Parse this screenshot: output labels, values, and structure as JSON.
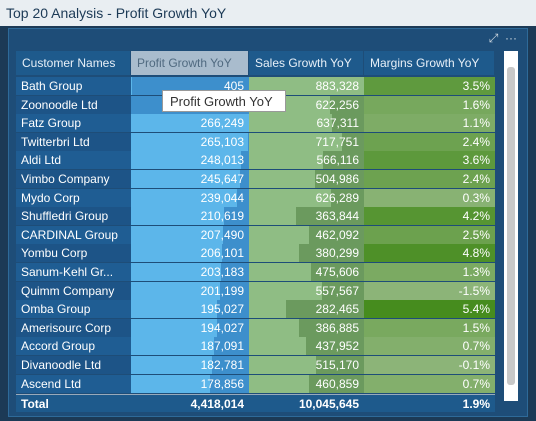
{
  "window": {
    "title": "Top 20 Analysis - Profit Growth YoY"
  },
  "table": {
    "columns": [
      "Customer Names",
      "Profit Growth YoY",
      "Sales Growth YoY",
      "Margins Growth YoY"
    ],
    "rows": [
      [
        "Bath Group",
        "405",
        "883,328",
        "3.5%"
      ],
      [
        "Zoonoodle Ltd",
        null,
        "622,256",
        "1.6%"
      ],
      [
        "Fatz Group",
        "266,249",
        "637,311",
        "1.1%"
      ],
      [
        "Twitterbri Ltd",
        "265,103",
        "717,751",
        "2.4%"
      ],
      [
        "Aldi Ltd",
        "248,013",
        "566,116",
        "3.6%"
      ],
      [
        "Vimbo Company",
        "245,647",
        "504,986",
        "2.4%"
      ],
      [
        "Mydo Corp",
        "239,044",
        "626,289",
        "0.3%"
      ],
      [
        "Shuffledri Group",
        "210,619",
        "363,844",
        "4.2%"
      ],
      [
        "CARDINAL Group",
        "207,490",
        "462,092",
        "2.5%"
      ],
      [
        "Yombu Corp",
        "206,101",
        "380,299",
        "4.8%"
      ],
      [
        "Sanum-Kehl Gr...",
        "203,183",
        "475,606",
        "1.3%"
      ],
      [
        "Quimm Company",
        "201,199",
        "557,567",
        "-1.5%"
      ],
      [
        "Omba Group",
        "195,027",
        "282,465",
        "5.4%"
      ],
      [
        "Amerisourc Corp",
        "194,027",
        "386,885",
        "1.5%"
      ],
      [
        "Accord Group",
        "187,091",
        "437,952",
        "0.7%"
      ],
      [
        "Divanoodle Ltd",
        "182,781",
        "515,170",
        "-0.1%"
      ],
      [
        "Ascend Ltd",
        "178,856",
        "460,859",
        "0.7%"
      ]
    ],
    "total": [
      "Total",
      "4,418,014",
      "10,045,645",
      "1.9%"
    ]
  },
  "tooltip": "Profit Growth YoY"
}
